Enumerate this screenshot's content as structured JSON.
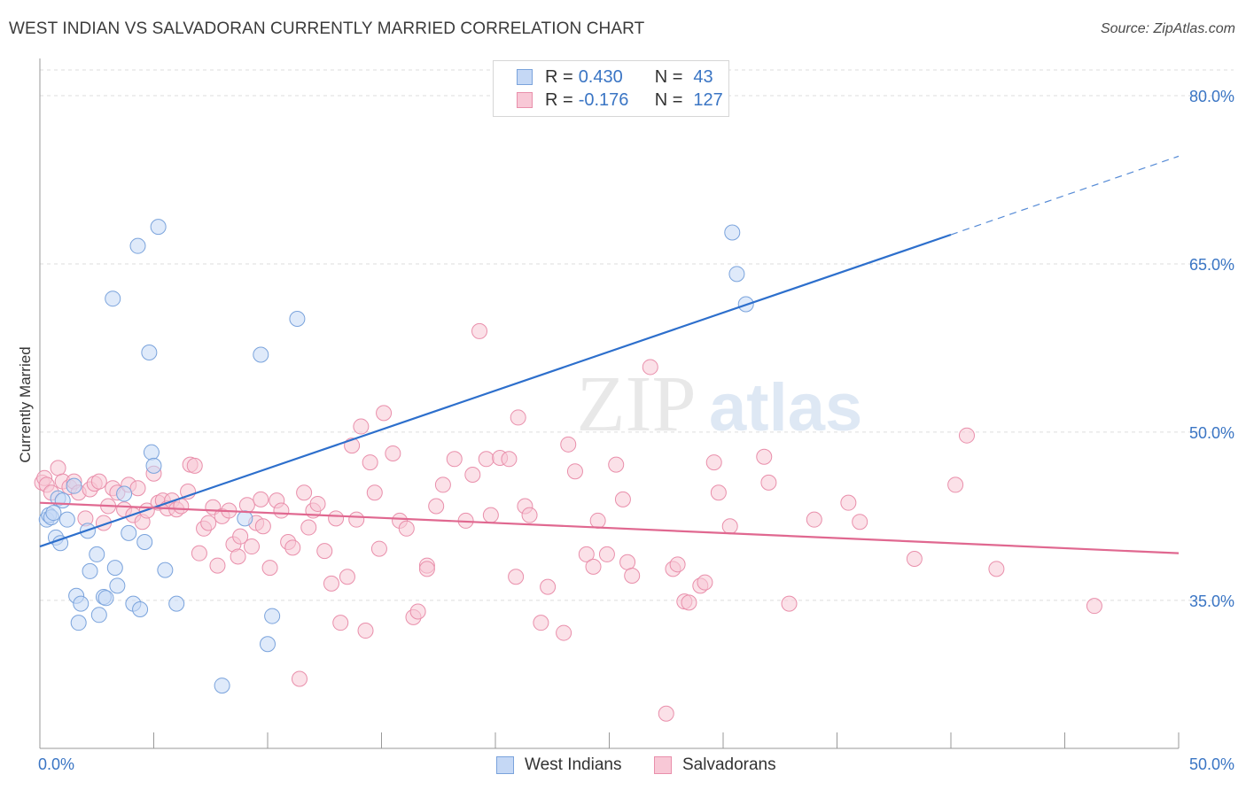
{
  "title": "WEST INDIAN VS SALVADORAN CURRENTLY MARRIED CORRELATION CHART",
  "source": "Source: ZipAtlas.com",
  "watermark": "ZIPatlas",
  "legend": {
    "rows": [
      {
        "r_label": "R =",
        "r_value": "0.430",
        "n_label": "N =",
        "n_value": "43"
      },
      {
        "r_label": "R =",
        "r_value": "-0.176",
        "n_label": "N =",
        "n_value": "127"
      }
    ]
  },
  "bottom_legend": [
    "West Indians",
    "Salvadorans"
  ],
  "colors": {
    "west_indian_fill": "#c5d8f5",
    "west_indian_stroke": "#7aa3dc",
    "west_indian_line": "#2d6fcc",
    "salvadoran_fill": "#f8c8d6",
    "salvadoran_stroke": "#e98fab",
    "salvadoran_line": "#e06890",
    "axis_text": "#3a75c4",
    "grid": "#dddddd"
  },
  "chart_data": {
    "type": "scatter",
    "title": "WEST INDIAN VS SALVADORAN CURRENTLY MARRIED CORRELATION CHART",
    "xlabel": "",
    "ylabel": "Currently Married",
    "xlim": [
      0,
      50
    ],
    "ylim": [
      21.8,
      83.0
    ],
    "x_tick_labels": [
      "0.0%",
      "50.0%"
    ],
    "y_ticks": [
      35,
      50,
      65,
      80
    ],
    "y_tick_labels": [
      "35.0%",
      "50.0%",
      "65.0%",
      "80.0%"
    ],
    "grid": "horizontal dashed",
    "legend_position": "top-center",
    "series": [
      {
        "name": "West Indians",
        "R": 0.43,
        "N": 43,
        "trend": {
          "x": [
            0,
            40
          ],
          "y": [
            39.8,
            67.6
          ],
          "dashed_to": [
            50,
            74.6
          ]
        },
        "points": [
          [
            0.3,
            42.2
          ],
          [
            0.4,
            42.6
          ],
          [
            0.5,
            42.4
          ],
          [
            0.6,
            42.8
          ],
          [
            0.7,
            40.6
          ],
          [
            0.8,
            44.1
          ],
          [
            0.9,
            40.1
          ],
          [
            1.0,
            43.9
          ],
          [
            1.2,
            42.2
          ],
          [
            1.5,
            45.2
          ],
          [
            1.6,
            35.4
          ],
          [
            1.7,
            33.0
          ],
          [
            1.8,
            34.7
          ],
          [
            2.1,
            41.2
          ],
          [
            2.2,
            37.6
          ],
          [
            2.5,
            39.1
          ],
          [
            2.6,
            33.7
          ],
          [
            2.8,
            35.3
          ],
          [
            2.9,
            35.2
          ],
          [
            3.2,
            61.9
          ],
          [
            3.3,
            37.9
          ],
          [
            3.4,
            36.3
          ],
          [
            3.7,
            44.5
          ],
          [
            3.9,
            41.0
          ],
          [
            4.1,
            34.7
          ],
          [
            4.3,
            66.6
          ],
          [
            4.4,
            34.2
          ],
          [
            4.6,
            40.2
          ],
          [
            4.8,
            57.1
          ],
          [
            4.9,
            48.2
          ],
          [
            5.0,
            47.0
          ],
          [
            5.2,
            68.3
          ],
          [
            5.5,
            37.7
          ],
          [
            6.0,
            34.7
          ],
          [
            8.0,
            27.4
          ],
          [
            9.0,
            42.3
          ],
          [
            9.7,
            56.9
          ],
          [
            10.0,
            31.1
          ],
          [
            10.2,
            33.6
          ],
          [
            11.3,
            60.1
          ],
          [
            31.0,
            61.4
          ],
          [
            30.4,
            67.8
          ],
          [
            30.6,
            64.1
          ]
        ]
      },
      {
        "name": "Salvadorans",
        "R": -0.176,
        "N": 127,
        "trend": {
          "x": [
            0,
            50
          ],
          "y": [
            43.7,
            39.2
          ]
        },
        "points": [
          [
            0.1,
            45.5
          ],
          [
            0.2,
            45.9
          ],
          [
            0.3,
            45.3
          ],
          [
            0.5,
            44.6
          ],
          [
            0.8,
            46.8
          ],
          [
            1.0,
            45.6
          ],
          [
            1.3,
            45.1
          ],
          [
            1.5,
            45.6
          ],
          [
            1.7,
            44.6
          ],
          [
            2.0,
            42.3
          ],
          [
            2.2,
            44.9
          ],
          [
            2.4,
            45.4
          ],
          [
            2.6,
            45.6
          ],
          [
            2.8,
            41.9
          ],
          [
            3.0,
            43.4
          ],
          [
            3.2,
            45.0
          ],
          [
            3.4,
            44.6
          ],
          [
            3.7,
            43.1
          ],
          [
            3.9,
            45.3
          ],
          [
            4.1,
            42.6
          ],
          [
            4.3,
            45.0
          ],
          [
            4.5,
            42.0
          ],
          [
            4.7,
            43.0
          ],
          [
            5.0,
            46.3
          ],
          [
            5.2,
            43.7
          ],
          [
            5.4,
            43.9
          ],
          [
            5.6,
            43.2
          ],
          [
            5.8,
            43.9
          ],
          [
            6.0,
            43.1
          ],
          [
            6.2,
            43.4
          ],
          [
            6.5,
            44.7
          ],
          [
            6.6,
            47.1
          ],
          [
            6.8,
            47.0
          ],
          [
            7.0,
            39.2
          ],
          [
            7.2,
            41.4
          ],
          [
            7.4,
            41.9
          ],
          [
            7.6,
            43.3
          ],
          [
            7.8,
            38.1
          ],
          [
            8.0,
            42.5
          ],
          [
            8.3,
            43.0
          ],
          [
            8.5,
            40.0
          ],
          [
            8.7,
            38.9
          ],
          [
            8.8,
            40.7
          ],
          [
            9.1,
            43.5
          ],
          [
            9.3,
            39.8
          ],
          [
            9.5,
            41.9
          ],
          [
            9.7,
            44.0
          ],
          [
            9.8,
            41.6
          ],
          [
            10.1,
            37.9
          ],
          [
            10.4,
            43.9
          ],
          [
            10.6,
            43.0
          ],
          [
            10.9,
            40.2
          ],
          [
            11.1,
            39.7
          ],
          [
            11.4,
            28.0
          ],
          [
            11.6,
            44.6
          ],
          [
            11.8,
            41.5
          ],
          [
            12.0,
            43.0
          ],
          [
            12.2,
            43.6
          ],
          [
            12.5,
            39.4
          ],
          [
            12.8,
            36.5
          ],
          [
            13.0,
            42.3
          ],
          [
            13.2,
            33.0
          ],
          [
            13.5,
            37.1
          ],
          [
            13.7,
            48.8
          ],
          [
            13.9,
            42.2
          ],
          [
            14.1,
            50.5
          ],
          [
            14.3,
            32.3
          ],
          [
            14.5,
            47.3
          ],
          [
            14.7,
            44.6
          ],
          [
            14.9,
            39.6
          ],
          [
            15.1,
            51.7
          ],
          [
            15.5,
            48.1
          ],
          [
            15.8,
            42.1
          ],
          [
            16.1,
            41.4
          ],
          [
            16.4,
            33.5
          ],
          [
            16.6,
            34.0
          ],
          [
            17.0,
            38.1
          ],
          [
            17.0,
            37.8
          ],
          [
            17.4,
            43.4
          ],
          [
            17.7,
            45.3
          ],
          [
            18.2,
            47.6
          ],
          [
            18.7,
            42.1
          ],
          [
            19.0,
            46.2
          ],
          [
            19.3,
            59.0
          ],
          [
            19.6,
            47.6
          ],
          [
            19.8,
            42.6
          ],
          [
            20.2,
            47.7
          ],
          [
            20.6,
            47.6
          ],
          [
            20.9,
            37.1
          ],
          [
            21.0,
            51.3
          ],
          [
            21.3,
            43.4
          ],
          [
            21.5,
            42.6
          ],
          [
            22.0,
            33.0
          ],
          [
            22.3,
            36.2
          ],
          [
            23.0,
            32.1
          ],
          [
            23.2,
            48.9
          ],
          [
            23.5,
            46.5
          ],
          [
            24.0,
            39.1
          ],
          [
            24.3,
            38.0
          ],
          [
            24.5,
            42.1
          ],
          [
            24.9,
            39.1
          ],
          [
            25.3,
            47.1
          ],
          [
            25.6,
            44.0
          ],
          [
            25.8,
            38.4
          ],
          [
            26.0,
            37.2
          ],
          [
            26.8,
            55.8
          ],
          [
            27.5,
            24.9
          ],
          [
            27.8,
            37.8
          ],
          [
            28.0,
            38.2
          ],
          [
            28.3,
            34.9
          ],
          [
            28.5,
            34.8
          ],
          [
            29.0,
            36.3
          ],
          [
            29.2,
            36.6
          ],
          [
            29.6,
            47.3
          ],
          [
            29.8,
            44.6
          ],
          [
            30.3,
            41.6
          ],
          [
            31.8,
            47.8
          ],
          [
            32.0,
            45.5
          ],
          [
            32.9,
            34.7
          ],
          [
            34.0,
            42.2
          ],
          [
            35.5,
            43.7
          ],
          [
            36.0,
            42.0
          ],
          [
            38.4,
            38.7
          ],
          [
            40.2,
            45.3
          ],
          [
            40.7,
            49.7
          ],
          [
            42.0,
            37.8
          ],
          [
            46.3,
            34.5
          ]
        ]
      }
    ]
  }
}
